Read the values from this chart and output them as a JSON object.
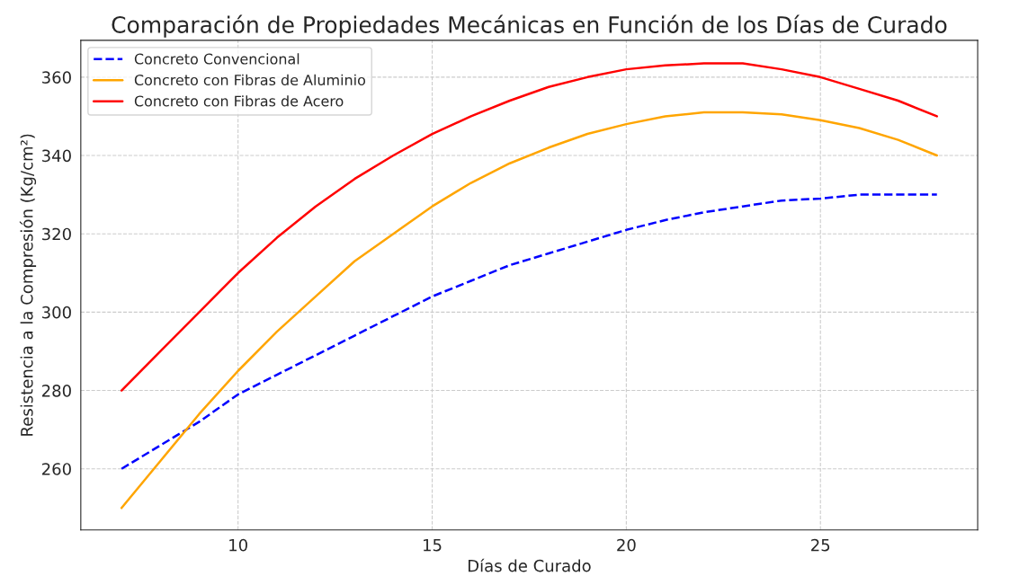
{
  "chart_data": {
    "type": "line",
    "title": "Comparación de Propiedades Mecánicas en Función de los Días de Curado",
    "xlabel": "Días de Curado",
    "ylabel": "Resistencia a la Compresión (Kg/cm²)",
    "x": [
      7,
      8,
      9,
      10,
      11,
      12,
      13,
      14,
      15,
      16,
      17,
      18,
      19,
      20,
      21,
      22,
      23,
      24,
      25,
      26,
      27,
      28
    ],
    "series": [
      {
        "name": "Concreto Convencional",
        "color": "#0000ff",
        "line_style": "dashed",
        "values": [
          260,
          266,
          272,
          279,
          284,
          289,
          294,
          299,
          304,
          308,
          312,
          315,
          318,
          321,
          323.5,
          325.5,
          327,
          328.5,
          329,
          330,
          330,
          330
        ]
      },
      {
        "name": "Concreto con Fibras de Aluminio",
        "color": "#ffa500",
        "line_style": "solid",
        "values": [
          250,
          262,
          274,
          285,
          295,
          304,
          313,
          320,
          327,
          333,
          338,
          342,
          345.5,
          348,
          350,
          351,
          351,
          350.5,
          349,
          347,
          344,
          340
        ]
      },
      {
        "name": "Concreto con Fibras de Acero",
        "color": "#ff0000",
        "line_style": "solid",
        "values": [
          280,
          290,
          300,
          310,
          319,
          327,
          334,
          340,
          345.5,
          350,
          354,
          357.5,
          360,
          362,
          363,
          363.5,
          363.5,
          362,
          360,
          357,
          354,
          350
        ]
      }
    ],
    "xlim": [
      5.95,
      29.05
    ],
    "ylim": [
      244.4,
      369.4
    ],
    "xticks": [
      10,
      15,
      20,
      25
    ],
    "yticks": [
      260,
      280,
      300,
      320,
      340,
      360
    ],
    "grid": true,
    "legend": "top left",
    "marker": "none"
  }
}
